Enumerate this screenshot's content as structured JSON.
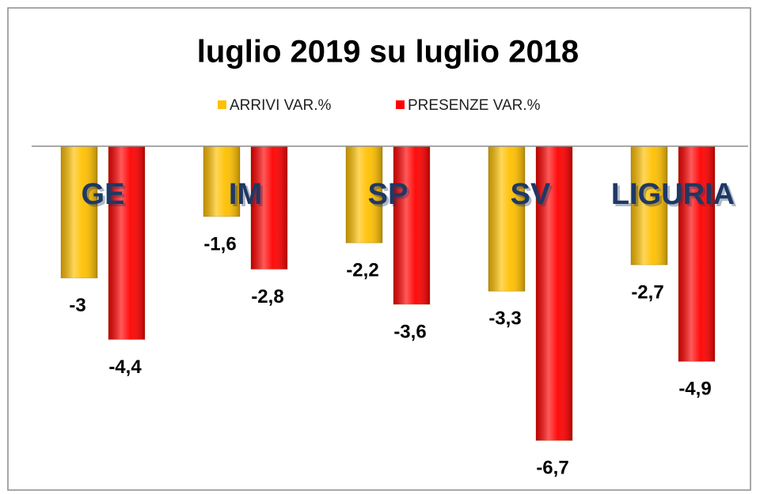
{
  "chart_data": {
    "type": "bar",
    "title": "luglio 2019 su luglio 2018",
    "categories": [
      "GE",
      "IM",
      "SP",
      "SV",
      "LIGURIA"
    ],
    "series": [
      {
        "name": "ARRIVI VAR.%",
        "color": "#ffc000",
        "values": [
          -3,
          -1.6,
          -2.2,
          -3.3,
          -2.7
        ],
        "value_labels": [
          "-3",
          "-1,6",
          "-2,2",
          "-3,3",
          "-2,7"
        ]
      },
      {
        "name": "PRESENZE VAR.%",
        "color": "#ff0000",
        "values": [
          -4.4,
          -2.8,
          -3.6,
          -6.7,
          -4.9
        ],
        "value_labels": [
          "-4,4",
          "-2,8",
          "-3,6",
          "-6,7",
          "-4,9"
        ]
      }
    ],
    "ylim": [
      -7,
      0
    ],
    "legend": "top"
  }
}
